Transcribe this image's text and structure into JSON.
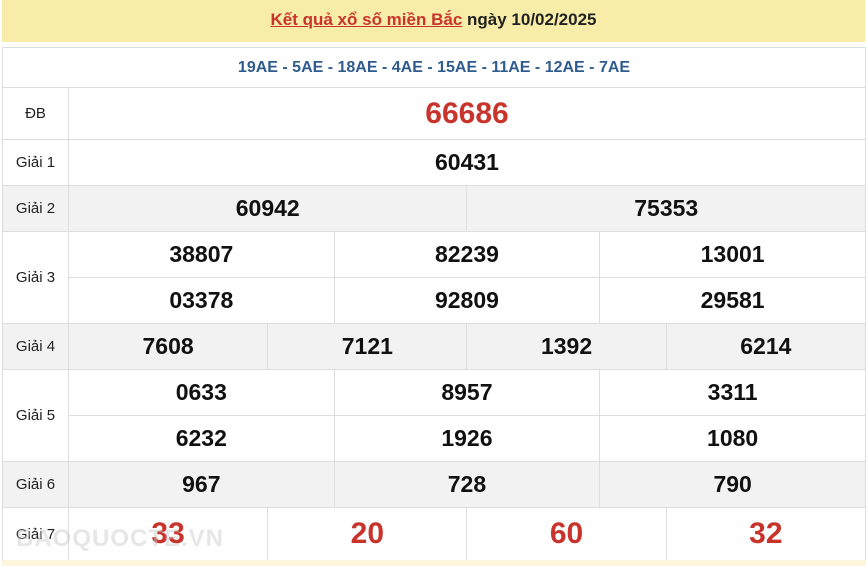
{
  "header": {
    "link": "Kết quả xổ số miền Bắc",
    "date_text": "ngày 10/02/2025"
  },
  "codes": "19AE - 5AE - 18AE - 4AE - 15AE - 11AE - 12AE - 7AE",
  "prizes": {
    "db": {
      "label": "ĐB",
      "values": [
        "66686"
      ]
    },
    "g1": {
      "label": "Giải 1",
      "values": [
        "60431"
      ]
    },
    "g2": {
      "label": "Giải 2",
      "values": [
        "60942",
        "75353"
      ]
    },
    "g3": {
      "label": "Giải 3",
      "values": [
        "38807",
        "82239",
        "13001",
        "03378",
        "92809",
        "29581"
      ]
    },
    "g4": {
      "label": "Giải 4",
      "values": [
        "7608",
        "7121",
        "1392",
        "6214"
      ]
    },
    "g5": {
      "label": "Giải 5",
      "values": [
        "0633",
        "8957",
        "3311",
        "6232",
        "1926",
        "1080"
      ]
    },
    "g6": {
      "label": "Giải 6",
      "values": [
        "967",
        "728",
        "790"
      ]
    },
    "g7": {
      "label": "Giải 7",
      "values": [
        "33",
        "20",
        "60",
        "32"
      ]
    }
  },
  "watermark": "BAOQUOCTE.VN",
  "colors": {
    "accent": "#c8332b",
    "codes": "#2f5b8e",
    "header_bg": "#f8eda8"
  }
}
